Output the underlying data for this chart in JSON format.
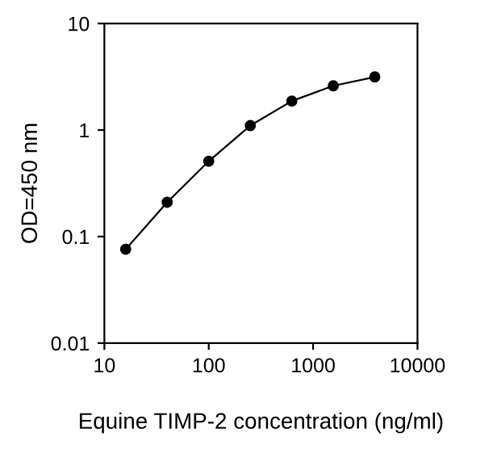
{
  "chart_data": {
    "type": "line",
    "xlabel": "Equine TIMP-2 concentration (ng/ml)",
    "ylabel": "OD=450 nm",
    "x": [
      16,
      40,
      100,
      250,
      625,
      1560,
      3900
    ],
    "series": [
      {
        "color": "#000000",
        "values": [
          0.076,
          0.21,
          0.51,
          1.1,
          1.87,
          2.6,
          3.15
        ]
      }
    ],
    "log": "xy",
    "xlim": [
      10,
      10000
    ],
    "ylim": [
      0.01,
      10
    ],
    "xticks": [
      10,
      100,
      1000,
      10000
    ],
    "yticks": [
      0.01,
      0.1,
      1,
      10
    ],
    "marker": "circle",
    "line_style": "solid",
    "grid": false,
    "legend": false
  }
}
